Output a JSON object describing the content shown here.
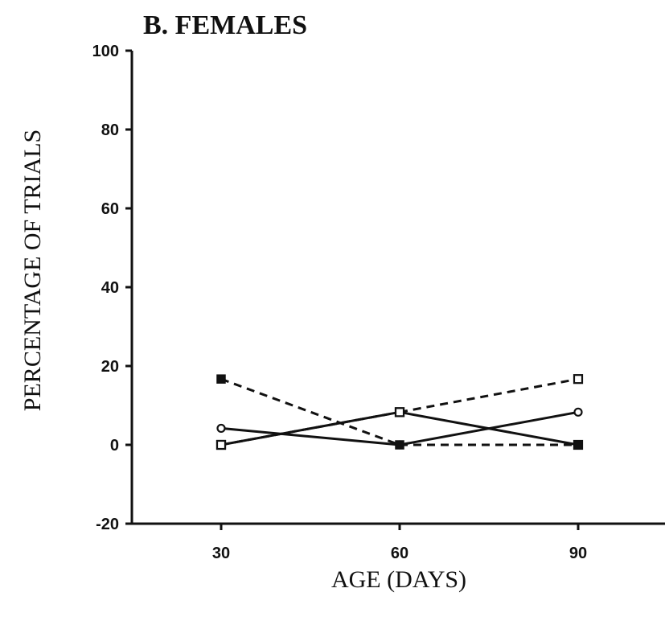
{
  "chart_data": {
    "type": "line",
    "title": "B. FEMALES",
    "xlabel": "AGE (DAYS)",
    "ylabel": "PERCENTAGE OF TRIALS",
    "x": [
      30,
      60,
      90
    ],
    "xticks": [
      "30",
      "60",
      "90"
    ],
    "yticks": [
      "-20",
      "0",
      "20",
      "40",
      "60",
      "80",
      "100"
    ],
    "ylim": [
      -20,
      100
    ],
    "grid": false,
    "series": [
      {
        "marker": "open-circle",
        "line": "solid",
        "color": "#111111",
        "values": [
          4.2,
          0,
          8.3
        ]
      },
      {
        "marker": "open-square",
        "line": "solid",
        "color": "#111111",
        "values": [
          0,
          8.3,
          0
        ]
      },
      {
        "marker": "filled-square",
        "line": "dashed",
        "color": "#111111",
        "values": [
          16.7,
          0,
          0
        ]
      },
      {
        "marker": "open-square",
        "line": "dashed",
        "color": "#111111",
        "values": [
          0,
          8.3,
          16.7
        ]
      }
    ]
  }
}
